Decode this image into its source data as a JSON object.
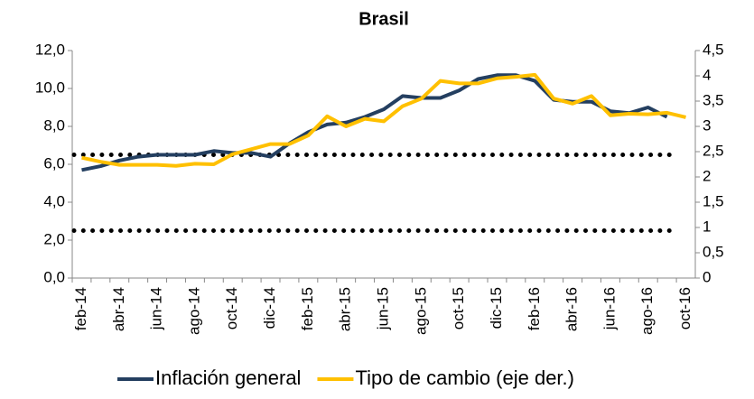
{
  "chart_data": {
    "type": "line",
    "title": "Brasil",
    "categories": [
      "feb-14",
      null,
      "abr-14",
      null,
      "jun-14",
      null,
      "ago-14",
      null,
      "oct-14",
      null,
      "dic-14",
      null,
      "feb-15",
      null,
      "abr-15",
      null,
      "jun-15",
      null,
      "ago-15",
      null,
      "oct-15",
      null,
      "dic-15",
      null,
      "feb-16",
      null,
      "abr-16",
      null,
      "jun-16",
      null,
      "ago-16",
      null,
      "oct-16"
    ],
    "series": [
      {
        "name": "Inflación general",
        "color": "#243f60",
        "axis": "y",
        "values": [
          5.7,
          5.9,
          6.2,
          6.4,
          6.5,
          6.5,
          6.5,
          6.7,
          6.6,
          6.6,
          6.4,
          7.1,
          7.7,
          8.1,
          8.2,
          8.5,
          8.9,
          9.6,
          9.5,
          9.5,
          9.9,
          10.5,
          10.7,
          10.7,
          10.4,
          9.4,
          9.3,
          9.3,
          8.8,
          8.7,
          9.0,
          8.5,
          null
        ]
      },
      {
        "name": "Tipo de cambio (eje der.)",
        "color": "#ffc000",
        "axis": "y2",
        "values": [
          2.38,
          2.3,
          2.24,
          2.24,
          2.24,
          2.22,
          2.26,
          2.25,
          2.45,
          2.55,
          2.65,
          2.65,
          2.82,
          3.2,
          3.0,
          3.15,
          3.1,
          3.4,
          3.55,
          3.9,
          3.85,
          3.85,
          3.95,
          3.98,
          4.02,
          3.55,
          3.45,
          3.6,
          3.22,
          3.25,
          3.24,
          3.27,
          3.18
        ]
      }
    ],
    "reference_lines": [
      6.5,
      2.5
    ],
    "ylim": [
      0,
      12
    ],
    "yticks": [
      {
        "value": 0,
        "label": "0,0"
      },
      {
        "value": 2,
        "label": "2,0"
      },
      {
        "value": 4,
        "label": "4,0"
      },
      {
        "value": 6,
        "label": "6,0"
      },
      {
        "value": 8,
        "label": "8,0"
      },
      {
        "value": 10,
        "label": "10,0"
      },
      {
        "value": 12,
        "label": "12,0"
      }
    ],
    "y2lim": [
      0,
      4.5
    ],
    "y2ticks": [
      0,
      {
        "value": 0.5,
        "label": "0,5"
      },
      1,
      {
        "value": 1.5,
        "label": "1,5"
      },
      2,
      {
        "value": 2.5,
        "label": "2,5"
      },
      3,
      {
        "value": 3.5,
        "label": "3,5"
      },
      4,
      {
        "value": 4.5,
        "label": "4,5"
      }
    ],
    "legend": "bottom"
  }
}
